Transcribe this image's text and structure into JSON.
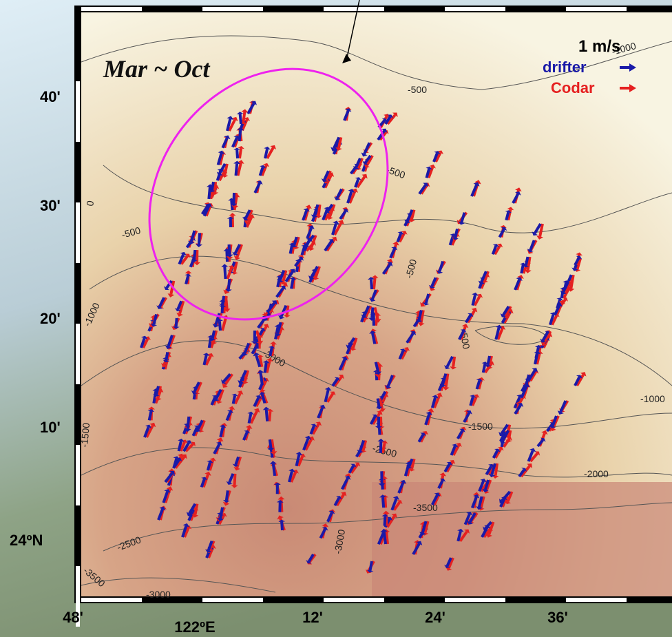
{
  "map": {
    "period_label": "Mar ~ Oct",
    "legend": {
      "scale": "1 m/s",
      "drifter": "drifter",
      "codar": "Codar"
    },
    "lat_labels": [
      "40'",
      "30'",
      "20'",
      "10'",
      "24ºN"
    ],
    "lon_labels": [
      "48'",
      "122ºE",
      "12'",
      "24'",
      "36'"
    ],
    "contour_labels": [
      "-500",
      "-500",
      "-500",
      "-1000",
      "-3000",
      "-500",
      "-1000",
      "-1500",
      "-2500",
      "-2000",
      "-3500",
      "-3000",
      "-2500",
      "-3500",
      "-3000",
      "0",
      "-1500",
      "-1000",
      "-500"
    ]
  }
}
